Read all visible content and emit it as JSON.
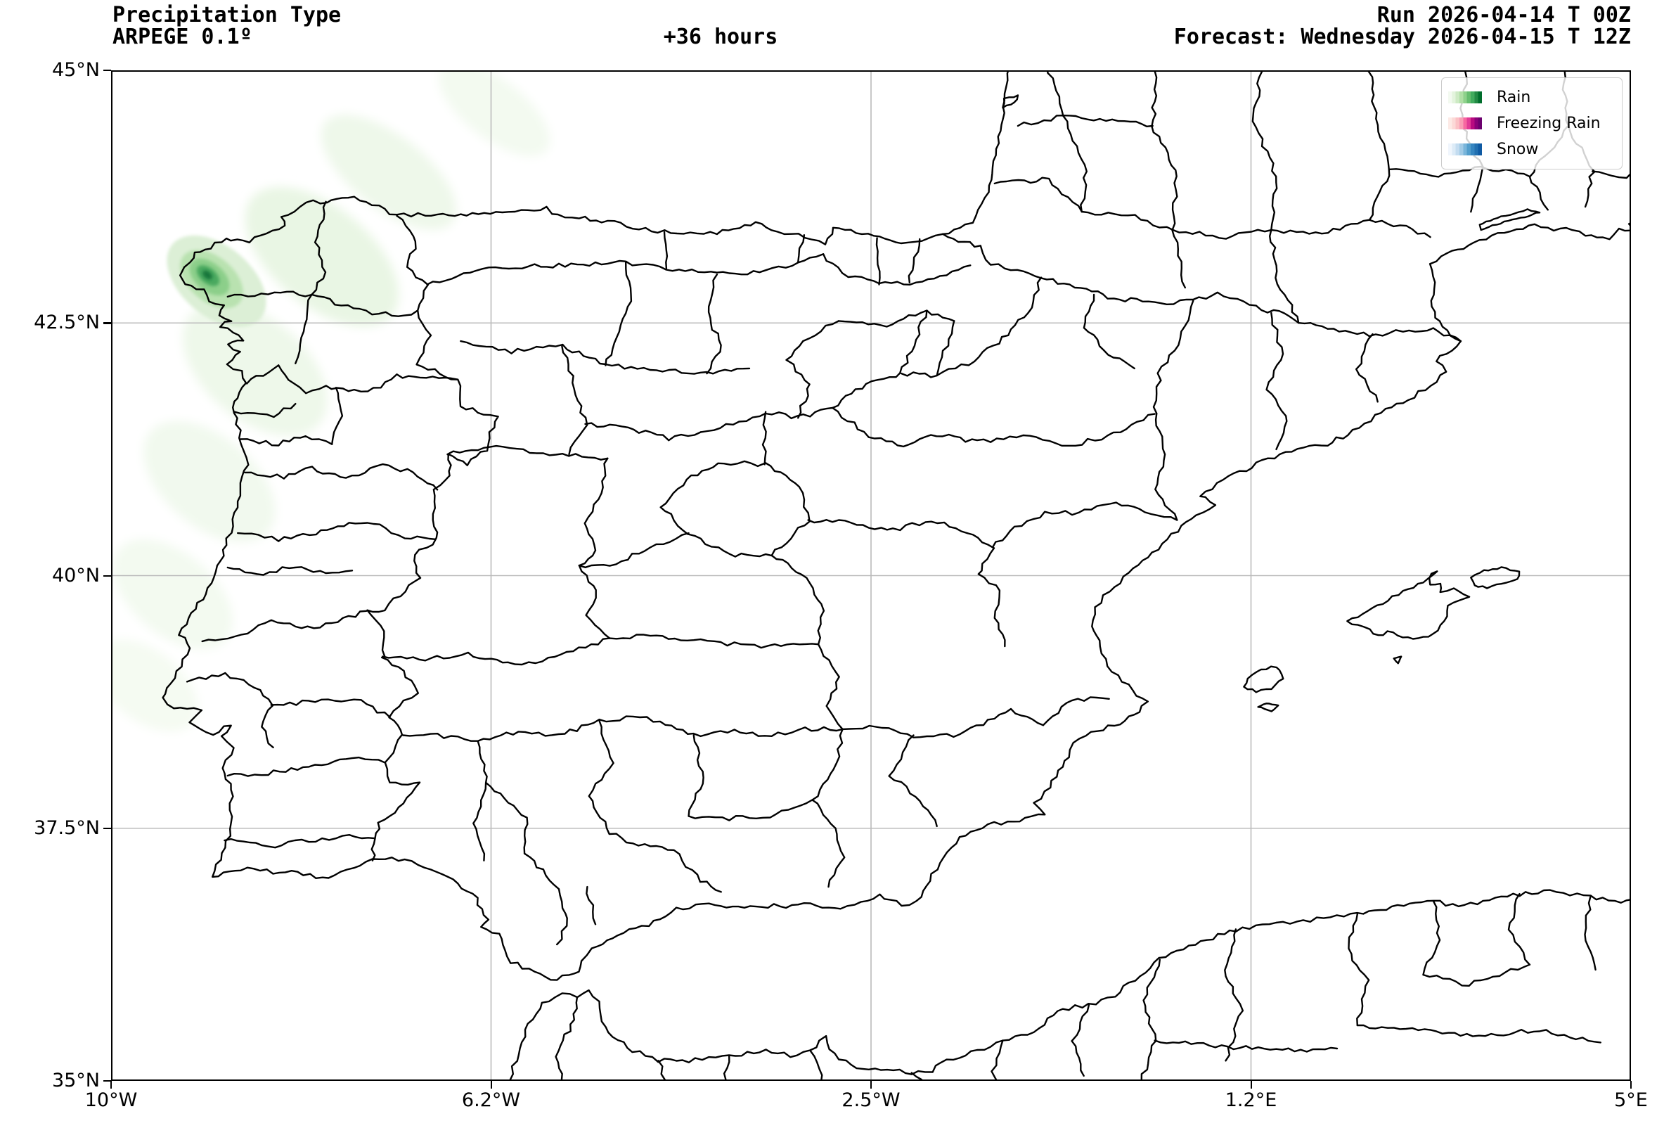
{
  "header": {
    "title": "Precipitation Type",
    "model": "ARPEGE 0.1º",
    "lead_time": "+36 hours",
    "run": "Run 2026-04-14 T 00Z",
    "forecast": "Forecast: Wednesday 2026-04-15 T 12Z"
  },
  "legend": {
    "items": [
      {
        "name": "rain",
        "label": "Rain",
        "colors": [
          "#f3faf0",
          "#e3f4dd",
          "#cdeac4",
          "#b0dfa6",
          "#8ed18b",
          "#66bd6f",
          "#41ab5d",
          "#238b45",
          "#006d2c"
        ]
      },
      {
        "name": "freezing-rain",
        "label": "Freezing Rain",
        "colors": [
          "#fdeae6",
          "#fcd9d7",
          "#fbc1c5",
          "#f99eb6",
          "#f768a1",
          "#e23b96",
          "#b80b80",
          "#8a0179",
          "#6c016e"
        ]
      },
      {
        "name": "snow",
        "label": "Snow",
        "colors": [
          "#f0f6fd",
          "#dcebf7",
          "#c3dcf0",
          "#a2cbe6",
          "#79b5da",
          "#539ecc",
          "#3585c0",
          "#2270b1",
          "#0f5aa3"
        ]
      }
    ]
  },
  "axes": {
    "y_ticks": [
      "45°N",
      "42.5°N",
      "40°N",
      "37.5°N",
      "35°N"
    ],
    "x_ticks": [
      "10°W",
      "6.2°W",
      "2.5°W",
      "1.2°E",
      "5°E"
    ]
  },
  "map": {
    "region": "Iberian Peninsula",
    "grid_color": "#bbbbbb",
    "outline_color": "#000000",
    "precipitation": [
      {
        "type": "rain",
        "intensity": "light",
        "location": "Galicia / NW Iberian Atlantic coast"
      }
    ]
  }
}
